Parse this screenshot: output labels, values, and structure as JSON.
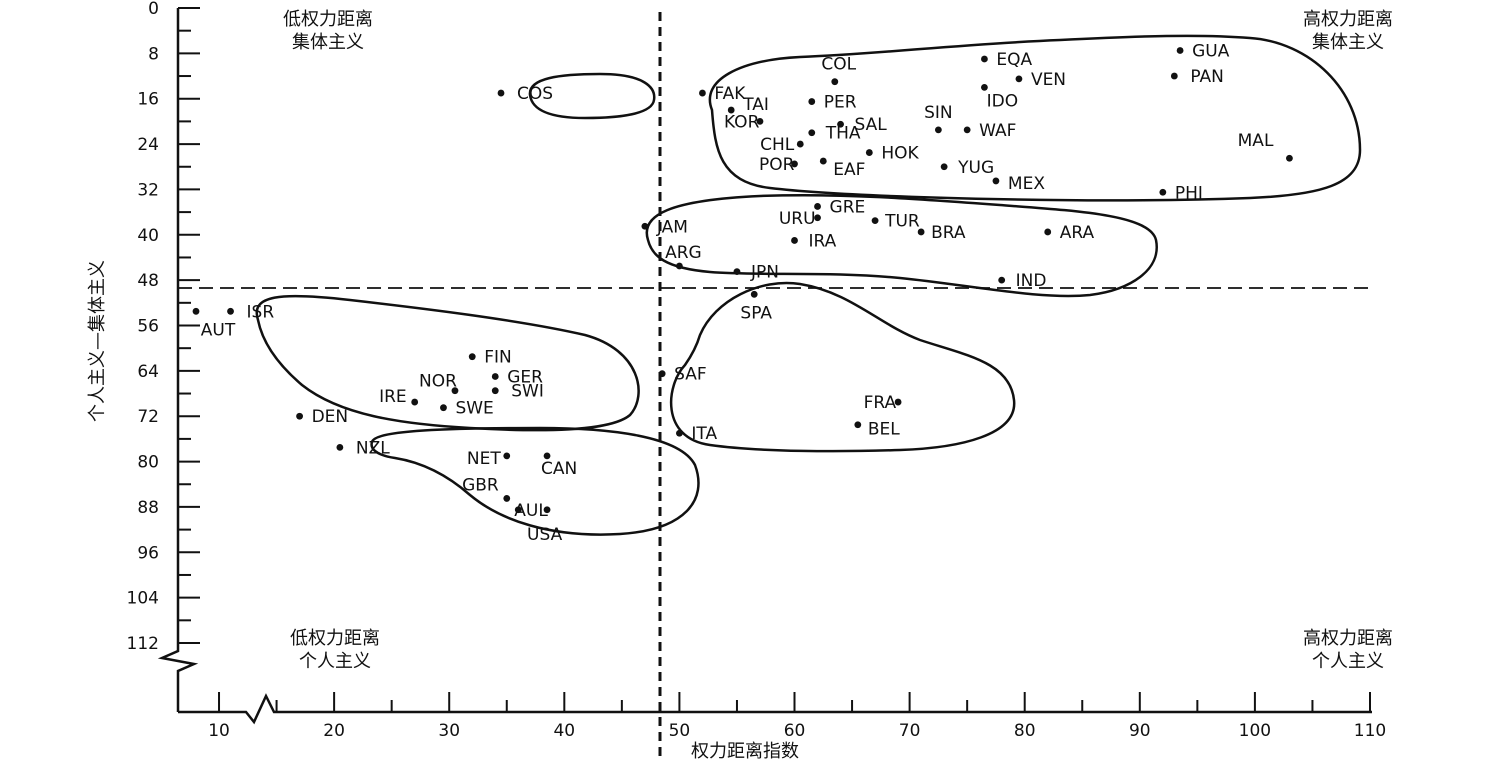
{
  "chart_data": {
    "type": "scatter",
    "xlabel": "权力距离指数",
    "ylabel": "个人主义—集体主义",
    "xlim": [
      0,
      110
    ],
    "ylim": [
      0,
      112
    ],
    "y_inverted": true,
    "x_axis_break": true,
    "y_axis_break": true,
    "x_ticks": [
      10,
      20,
      30,
      40,
      50,
      60,
      70,
      80,
      90,
      100,
      110
    ],
    "y_ticks": [
      0,
      8,
      16,
      24,
      32,
      40,
      48,
      56,
      64,
      72,
      80,
      88,
      96,
      104,
      112
    ],
    "divider_x": 43.5,
    "divider_y": 49.5,
    "quadrant_labels": {
      "top_left": [
        "低权力距离",
        "集体主义"
      ],
      "top_right": [
        "高权力距离",
        "集体主义"
      ],
      "bottom_left": [
        "低权力距离",
        "个人主义"
      ],
      "bottom_right": [
        "高权力距离",
        "个人主义"
      ]
    },
    "points": [
      {
        "label": "COS",
        "x": 34.5,
        "y": 15
      },
      {
        "label": "GUA",
        "x": 93.5,
        "y": 7.5
      },
      {
        "label": "PAN",
        "x": 93,
        "y": 12
      },
      {
        "label": "EQA",
        "x": 76.5,
        "y": 9
      },
      {
        "label": "VEN",
        "x": 79.5,
        "y": 12.5
      },
      {
        "label": "COL",
        "x": 63.5,
        "y": 13
      },
      {
        "label": "FAK",
        "x": 52,
        "y": 15
      },
      {
        "label": "IDO",
        "x": 76.5,
        "y": 14
      },
      {
        "label": "PER",
        "x": 61.5,
        "y": 16.5
      },
      {
        "label": "TAI",
        "x": 54.5,
        "y": 18
      },
      {
        "label": "KOR",
        "x": 57,
        "y": 20
      },
      {
        "label": "SAL",
        "x": 64,
        "y": 20.5
      },
      {
        "label": "SIN",
        "x": 72.5,
        "y": 21.5
      },
      {
        "label": "WAF",
        "x": 75,
        "y": 21.5
      },
      {
        "label": "THA",
        "x": 61.5,
        "y": 22
      },
      {
        "label": "CHL",
        "x": 60.5,
        "y": 24
      },
      {
        "label": "HOK",
        "x": 66.5,
        "y": 25.5
      },
      {
        "label": "MAL",
        "x": 103,
        "y": 26.5
      },
      {
        "label": "POR",
        "x": 60,
        "y": 27.5
      },
      {
        "label": "EAF",
        "x": 62.5,
        "y": 27
      },
      {
        "label": "YUG",
        "x": 73,
        "y": 28
      },
      {
        "label": "MEX",
        "x": 77.5,
        "y": 30.5
      },
      {
        "label": "PHI",
        "x": 92,
        "y": 32.5
      },
      {
        "label": "GRE",
        "x": 62,
        "y": 35
      },
      {
        "label": "URU",
        "x": 62,
        "y": 37
      },
      {
        "label": "TUR",
        "x": 67,
        "y": 37.5
      },
      {
        "label": "JAM",
        "x": 47,
        "y": 38.5
      },
      {
        "label": "BRA",
        "x": 71,
        "y": 39.5
      },
      {
        "label": "ARA",
        "x": 82,
        "y": 39.5
      },
      {
        "label": "IRA",
        "x": 60,
        "y": 41
      },
      {
        "label": "ARG",
        "x": 50,
        "y": 45.5
      },
      {
        "label": "JPN",
        "x": 55,
        "y": 46.5
      },
      {
        "label": "IND",
        "x": 78,
        "y": 48
      },
      {
        "label": "SPA",
        "x": 56.5,
        "y": 50.5
      },
      {
        "label": "ISR",
        "x": 11,
        "y": 53.5
      },
      {
        "label": "AUT",
        "x": 8,
        "y": 53.5
      },
      {
        "label": "FIN",
        "x": 32,
        "y": 61.5
      },
      {
        "label": "SAF",
        "x": 48.5,
        "y": 64.5
      },
      {
        "label": "GER",
        "x": 34,
        "y": 65
      },
      {
        "label": "NOR",
        "x": 30.5,
        "y": 67.5
      },
      {
        "label": "SWI",
        "x": 34,
        "y": 67.5
      },
      {
        "label": "IRE",
        "x": 27,
        "y": 69.5
      },
      {
        "label": "SWE",
        "x": 29.5,
        "y": 70.5
      },
      {
        "label": "FRA",
        "x": 69,
        "y": 69.5
      },
      {
        "label": "DEN",
        "x": 17,
        "y": 72
      },
      {
        "label": "BEL",
        "x": 65.5,
        "y": 73.5
      },
      {
        "label": "ITA",
        "x": 50,
        "y": 75
      },
      {
        "label": "NZL",
        "x": 20.5,
        "y": 77.5
      },
      {
        "label": "NET",
        "x": 35,
        "y": 79
      },
      {
        "label": "CAN",
        "x": 38.5,
        "y": 79
      },
      {
        "label": "GBR",
        "x": 35,
        "y": 86.5
      },
      {
        "label": "AUL",
        "x": 36,
        "y": 88.5
      },
      {
        "label": "USA",
        "x": 38.5,
        "y": 88.5
      }
    ]
  }
}
